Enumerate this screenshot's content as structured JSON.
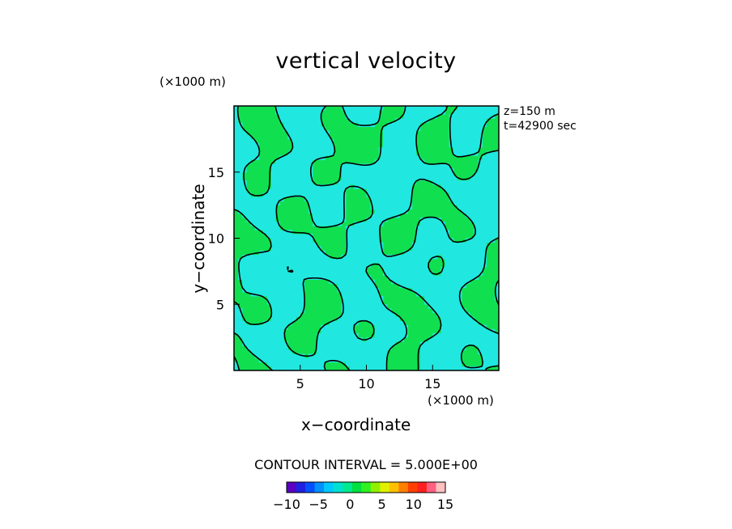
{
  "chart_data": {
    "type": "heatmap",
    "title": "vertical velocity",
    "xlabel": "x−coordinate",
    "ylabel": "y−coordinate",
    "x_unit": "(×1000 m)",
    "y_unit": "(×1000 m)",
    "xlim": [
      0,
      20
    ],
    "ylim": [
      0,
      20
    ],
    "x_ticks": [
      5,
      10,
      15
    ],
    "y_ticks": [
      5,
      10,
      15
    ],
    "annotations": [
      "z=150 m",
      "t=42900 sec"
    ],
    "contour_interval_text": "CONTOUR INTERVAL = 5.000E+00",
    "contour_levels": [
      0
    ],
    "colorbar": {
      "min": -10,
      "max": 15,
      "tick_values": [
        -10,
        -5,
        0,
        5,
        10,
        15
      ],
      "tick_labels": [
        "−10",
        "−5",
        "0",
        "5",
        "10",
        "15"
      ],
      "colors": [
        "#5a00c0",
        "#2020e0",
        "#0050ff",
        "#0090ff",
        "#00c8ff",
        "#00e0d0",
        "#00e890",
        "#00e040",
        "#30f020",
        "#90f000",
        "#e0f000",
        "#ffc000",
        "#ff8000",
        "#ff4000",
        "#ff2020",
        "#ff6080",
        "#ffc0c0"
      ]
    },
    "colors": {
      "positive_field": "#10e050",
      "negative_field": "#20e8e0"
    }
  }
}
